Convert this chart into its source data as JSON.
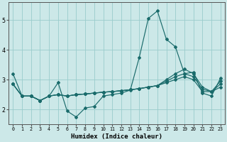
{
  "xlabel": "Humidex (Indice chaleur)",
  "bg_color": "#cce8e8",
  "grid_color": "#99cccc",
  "line_color": "#1a6b6b",
  "x_values": [
    0,
    1,
    2,
    3,
    4,
    5,
    6,
    7,
    8,
    9,
    10,
    11,
    12,
    13,
    14,
    15,
    16,
    17,
    18,
    19,
    20,
    21,
    22,
    23
  ],
  "line1": [
    3.2,
    2.45,
    2.45,
    2.3,
    2.45,
    2.9,
    1.95,
    1.75,
    2.05,
    2.1,
    2.45,
    2.5,
    2.55,
    2.65,
    3.75,
    5.05,
    5.3,
    4.35,
    4.1,
    3.2,
    3.25,
    2.55,
    2.45,
    3.05
  ],
  "line2": [
    2.85,
    2.45,
    2.45,
    2.3,
    2.45,
    2.5,
    2.45,
    2.5,
    2.52,
    2.55,
    2.58,
    2.6,
    2.63,
    2.66,
    2.7,
    2.75,
    2.8,
    2.9,
    3.0,
    3.1,
    3.0,
    2.6,
    2.6,
    2.75
  ],
  "line3": [
    2.85,
    2.45,
    2.45,
    2.3,
    2.45,
    2.5,
    2.45,
    2.5,
    2.52,
    2.55,
    2.58,
    2.6,
    2.63,
    2.66,
    2.7,
    2.75,
    2.8,
    2.95,
    3.1,
    3.2,
    3.1,
    2.68,
    2.6,
    2.85
  ],
  "line4": [
    2.85,
    2.45,
    2.45,
    2.3,
    2.45,
    2.5,
    2.45,
    2.5,
    2.52,
    2.55,
    2.58,
    2.6,
    2.63,
    2.66,
    2.7,
    2.75,
    2.8,
    3.0,
    3.2,
    3.35,
    3.2,
    2.75,
    2.6,
    2.95
  ],
  "ylim": [
    1.5,
    5.6
  ],
  "yticks": [
    2,
    3,
    4,
    5
  ],
  "xticks": [
    0,
    1,
    2,
    3,
    4,
    5,
    6,
    7,
    8,
    9,
    10,
    11,
    12,
    13,
    14,
    15,
    16,
    17,
    18,
    19,
    20,
    21,
    22,
    23
  ]
}
